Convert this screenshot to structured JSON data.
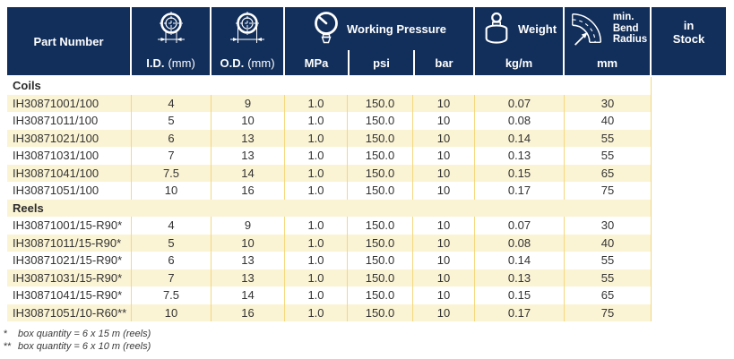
{
  "table": {
    "header": {
      "part_number": "Part Number",
      "id": {
        "abbr": "I.D.",
        "unit": "(mm)"
      },
      "od": {
        "abbr": "O.D.",
        "unit": "(mm)"
      },
      "working_pressure": {
        "title": "Working Pressure",
        "units": [
          "MPa",
          "psi",
          "bar"
        ]
      },
      "weight": {
        "title": "Weight",
        "unit": "kg/m"
      },
      "bend_radius": {
        "title_lines": [
          "min.",
          "Bend",
          "Radius"
        ],
        "unit": "mm"
      },
      "in_stock_lines": [
        "in",
        "Stock"
      ],
      "icons": [
        "id-cross-section-icon",
        "od-cross-section-icon",
        "pressure-gauge-icon",
        "weight-icon",
        "bend-radius-icon"
      ]
    },
    "sections": [
      {
        "label": "Coils",
        "rows": [
          [
            "IH30871001/100",
            "4",
            "9",
            "1.0",
            "150.0",
            "10",
            "0.07",
            "30",
            ""
          ],
          [
            "IH30871011/100",
            "5",
            "10",
            "1.0",
            "150.0",
            "10",
            "0.08",
            "40",
            ""
          ],
          [
            "IH30871021/100",
            "6",
            "13",
            "1.0",
            "150.0",
            "10",
            "0.14",
            "55",
            ""
          ],
          [
            "IH30871031/100",
            "7",
            "13",
            "1.0",
            "150.0",
            "10",
            "0.13",
            "55",
            ""
          ],
          [
            "IH30871041/100",
            "7.5",
            "14",
            "1.0",
            "150.0",
            "10",
            "0.15",
            "65",
            ""
          ],
          [
            "IH30871051/100",
            "10",
            "16",
            "1.0",
            "150.0",
            "10",
            "0.17",
            "75",
            ""
          ]
        ]
      },
      {
        "label": "Reels",
        "rows": [
          [
            "IH30871001/15-R90*",
            "4",
            "9",
            "1.0",
            "150.0",
            "10",
            "0.07",
            "30",
            ""
          ],
          [
            "IH30871011/15-R90*",
            "5",
            "10",
            "1.0",
            "150.0",
            "10",
            "0.08",
            "40",
            ""
          ],
          [
            "IH30871021/15-R90*",
            "6",
            "13",
            "1.0",
            "150.0",
            "10",
            "0.14",
            "55",
            ""
          ],
          [
            "IH30871031/15-R90*",
            "7",
            "13",
            "1.0",
            "150.0",
            "10",
            "0.13",
            "55",
            ""
          ],
          [
            "IH30871041/15-R90*",
            "7.5",
            "14",
            "1.0",
            "150.0",
            "10",
            "0.15",
            "65",
            ""
          ],
          [
            "IH30871051/10-R60**",
            "10",
            "16",
            "1.0",
            "150.0",
            "10",
            "0.17",
            "75",
            ""
          ]
        ]
      }
    ],
    "footnotes": [
      {
        "marker": "*",
        "text": "box quantity = 6 x 15 m (reels)"
      },
      {
        "marker": "**",
        "text": "box quantity = 6 x 10 m (reels)"
      }
    ],
    "colors": {
      "header_bg": "#122f5b",
      "row_highlight": "#faf3d4",
      "grid_line": "#f5d87e",
      "header_text": "#ffffff",
      "body_text": "#333333"
    }
  }
}
